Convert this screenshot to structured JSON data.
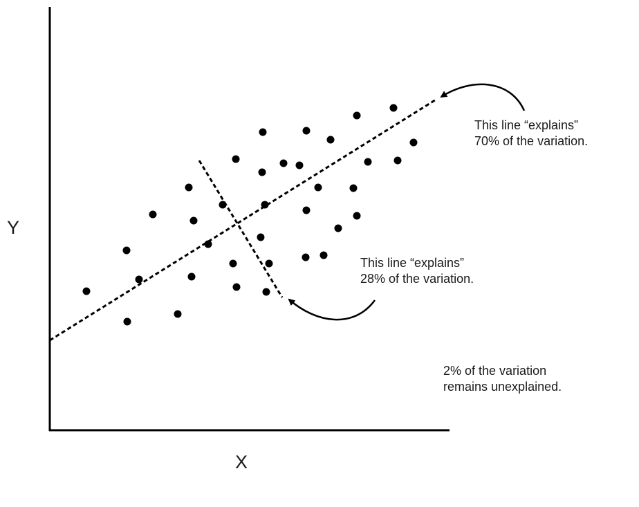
{
  "axes": {
    "x_label": "X",
    "y_label": "Y"
  },
  "annotations": {
    "line1": {
      "line_a": "This line “explains”",
      "line_b": "70% of the variation."
    },
    "line2": {
      "line_a": "This line “explains”",
      "line_b": "28% of the variation."
    },
    "unexplained": {
      "line_a": "2% of the variation",
      "line_b": "remains unexplained."
    }
  },
  "colors": {
    "ink": "#000000",
    "text": "#1a1a1a",
    "background": "#ffffff"
  }
}
